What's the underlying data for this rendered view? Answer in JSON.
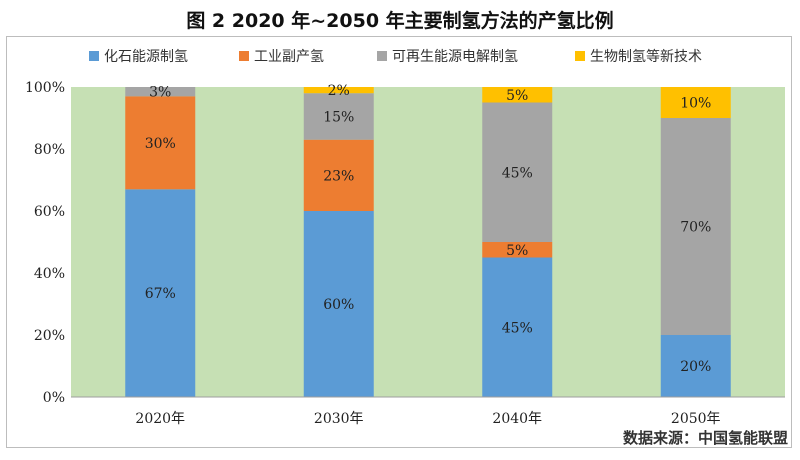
{
  "title": "图 2 2020 年~2050 年主要制氢方法的产氢比例",
  "source": "数据来源：中国氢能联盟",
  "colors": {
    "plot_background": "#c6e0b4",
    "fossil": "#5b9bd5",
    "industrial": "#ed7d31",
    "renewable": "#a5a5a5",
    "bio": "#ffc000"
  },
  "chart_data": {
    "type": "bar",
    "stacked": true,
    "categories": [
      "2020年",
      "2030年",
      "2040年",
      "2050年"
    ],
    "series": [
      {
        "name": "化石能源制氢",
        "values": [
          67,
          60,
          45,
          20
        ],
        "labels": [
          "67%",
          "60%",
          "45%",
          "20%"
        ]
      },
      {
        "name": "工业副产氢",
        "values": [
          30,
          23,
          5,
          0
        ],
        "labels": [
          "30%",
          "23%",
          "5%",
          ""
        ]
      },
      {
        "name": "可再生能源电解制氢",
        "values": [
          3,
          15,
          45,
          70
        ],
        "labels": [
          "3%",
          "15%",
          "45%",
          "70%"
        ]
      },
      {
        "name": "生物制氢等新技术",
        "values": [
          0,
          2,
          5,
          10
        ],
        "labels": [
          "",
          "2%",
          "5%",
          "10%"
        ]
      }
    ],
    "ylim": [
      0,
      100
    ],
    "yticks": [
      "0%",
      "20%",
      "40%",
      "60%",
      "80%",
      "100%"
    ],
    "grid": false,
    "legend_position": "top"
  }
}
